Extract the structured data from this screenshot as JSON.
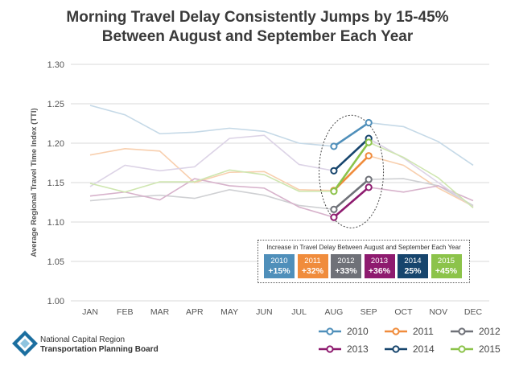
{
  "title_lines": [
    "Morning Travel Delay Consistently Jumps by 15-45%",
    "Between August and September Each Year"
  ],
  "chart_data": {
    "type": "line",
    "title": "Morning Travel Delay Consistently Jumps by 15-45% Between August and September Each Year",
    "ylabel": "Average Regional Travel Time Index (TTI)",
    "xlabel": "",
    "categories": [
      "JAN",
      "FEB",
      "MAR",
      "APR",
      "MAY",
      "JUN",
      "JUL",
      "AUG",
      "SEP",
      "OCT",
      "NOV",
      "DEC"
    ],
    "ylim": [
      1.0,
      1.3
    ],
    "yticks": [
      "1.00",
      "1.05",
      "1.10",
      "1.15",
      "1.20",
      "1.25",
      "1.30"
    ],
    "grid": true,
    "series": [
      {
        "name": "2010",
        "color": "#4f8fba",
        "faded": "#c5d9e7",
        "values": [
          1.248,
          1.236,
          1.212,
          1.214,
          1.219,
          1.215,
          1.2,
          1.196,
          1.226,
          1.221,
          1.202,
          1.172
        ]
      },
      {
        "name": "2011",
        "color": "#f08c3c",
        "faded": "#f8cfae",
        "values": [
          1.185,
          1.193,
          1.19,
          1.15,
          1.163,
          1.164,
          1.141,
          1.14,
          1.184,
          1.172,
          1.143,
          1.12
        ]
      },
      {
        "name": "2012",
        "color": "#6f7178",
        "faded": "#cfd0d3",
        "values": [
          1.127,
          1.131,
          1.134,
          1.13,
          1.141,
          1.134,
          1.121,
          1.116,
          1.154,
          1.155,
          1.146,
          1.121
        ]
      },
      {
        "name": "2013",
        "color": "#8e1b6f",
        "faded": "#d7b2cb",
        "values": [
          1.133,
          1.138,
          1.128,
          1.155,
          1.146,
          1.143,
          1.119,
          1.106,
          1.144,
          1.138,
          1.146,
          1.127
        ]
      },
      {
        "name": "2014",
        "color": "#17456d",
        "faded": "#dcd3e6",
        "values": [
          1.145,
          1.172,
          1.165,
          1.17,
          1.206,
          1.21,
          1.173,
          1.165,
          1.206,
          1.181,
          1.15,
          1.119
        ]
      },
      {
        "name": "2015",
        "color": "#8cc34a",
        "faded": "#cfe6b0",
        "values": [
          1.149,
          1.138,
          1.151,
          1.151,
          1.166,
          1.16,
          1.139,
          1.139,
          1.201,
          1.182,
          1.156,
          1.118
        ]
      }
    ],
    "annotation": {
      "title": "Increase in Travel Delay Between August and September Each Year",
      "items": [
        {
          "year": "2010",
          "pct": "+15%",
          "color": "#4f8fba"
        },
        {
          "year": "2011",
          "pct": "+32%",
          "color": "#f08c3c"
        },
        {
          "year": "2012",
          "pct": "+33%",
          "color": "#6f7178"
        },
        {
          "year": "2013",
          "pct": "+36%",
          "color": "#8e1b6f"
        },
        {
          "year": "2014",
          "pct": "25%",
          "color": "#17456d"
        },
        {
          "year": "2015",
          "pct": "+45%",
          "color": "#8cc34a"
        }
      ]
    },
    "legend_position": "bottom-right"
  },
  "logo": {
    "line1": "National Capital Region",
    "line2": "Transportation Planning Board",
    "colors": {
      "primary": "#1c6fa0",
      "light": "#8fc4df"
    }
  }
}
